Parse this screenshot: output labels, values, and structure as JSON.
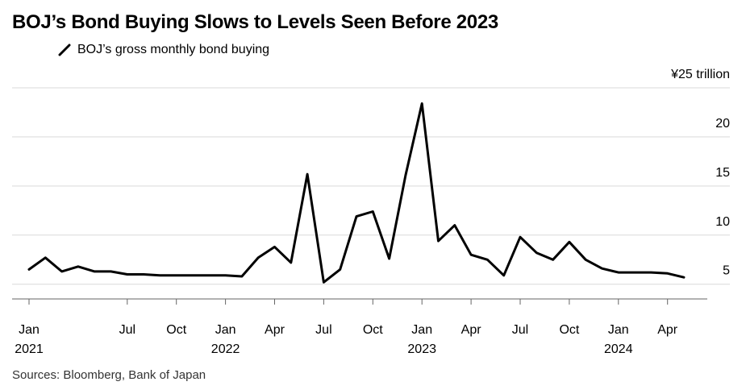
{
  "title": "BOJ’s Bond Buying Slows to Levels Seen Before 2023",
  "legend_label": "BOJ’s gross monthly bond buying",
  "source": "Sources: Bloomberg, Bank of Japan",
  "colors": {
    "line": "#000000",
    "grid": "#d9d9d9",
    "axis": "#666666"
  },
  "chart_data": {
    "type": "line",
    "title": "BOJ’s Bond Buying Slows to Levels Seen Before 2023",
    "xlabel": "",
    "ylabel": "",
    "y_unit_label": "¥25 trillion",
    "ylim": [
      3.5,
      25
    ],
    "y_ticks": [
      {
        "value": 5,
        "label": "5"
      },
      {
        "value": 10,
        "label": "10"
      },
      {
        "value": 15,
        "label": "15"
      },
      {
        "value": 20,
        "label": "20"
      }
    ],
    "x_ticks": [
      {
        "index": 0,
        "label": "Jan",
        "year": "2021"
      },
      {
        "index": 6,
        "label": "Jul",
        "year": ""
      },
      {
        "index": 9,
        "label": "Oct",
        "year": ""
      },
      {
        "index": 12,
        "label": "Jan",
        "year": "2022"
      },
      {
        "index": 15,
        "label": "Apr",
        "year": ""
      },
      {
        "index": 18,
        "label": "Jul",
        "year": ""
      },
      {
        "index": 21,
        "label": "Oct",
        "year": ""
      },
      {
        "index": 24,
        "label": "Jan",
        "year": "2023"
      },
      {
        "index": 27,
        "label": "Apr",
        "year": ""
      },
      {
        "index": 30,
        "label": "Jul",
        "year": ""
      },
      {
        "index": 33,
        "label": "Oct",
        "year": ""
      },
      {
        "index": 36,
        "label": "Jan",
        "year": "2024"
      },
      {
        "index": 39,
        "label": "Apr",
        "year": ""
      }
    ],
    "grid": true,
    "series": [
      {
        "x": [
          "2021-01",
          "2021-02",
          "2021-03",
          "2021-04",
          "2021-05",
          "2021-06",
          "2021-07",
          "2021-08",
          "2021-09",
          "2021-10",
          "2021-11",
          "2021-12",
          "2022-01",
          "2022-02",
          "2022-03",
          "2022-04",
          "2022-05",
          "2022-06",
          "2022-07",
          "2022-08",
          "2022-09",
          "2022-10",
          "2022-11",
          "2022-12",
          "2023-01",
          "2023-02",
          "2023-03",
          "2023-04",
          "2023-05",
          "2023-06",
          "2023-07",
          "2023-08",
          "2023-09",
          "2023-10",
          "2023-11",
          "2023-12",
          "2024-01",
          "2024-02",
          "2024-03",
          "2024-04",
          "2024-05"
        ],
        "values": [
          6.5,
          7.7,
          6.3,
          6.8,
          6.3,
          6.3,
          6.0,
          6.0,
          5.9,
          5.9,
          5.9,
          5.9,
          5.9,
          5.8,
          7.7,
          8.8,
          7.2,
          16.2,
          5.2,
          6.5,
          11.9,
          12.4,
          7.6,
          16.1,
          23.4,
          9.4,
          11.0,
          8.0,
          7.5,
          5.9,
          9.8,
          8.2,
          7.5,
          9.3,
          7.5,
          6.6,
          6.2,
          6.2,
          6.2,
          6.1,
          5.7
        ]
      }
    ]
  }
}
